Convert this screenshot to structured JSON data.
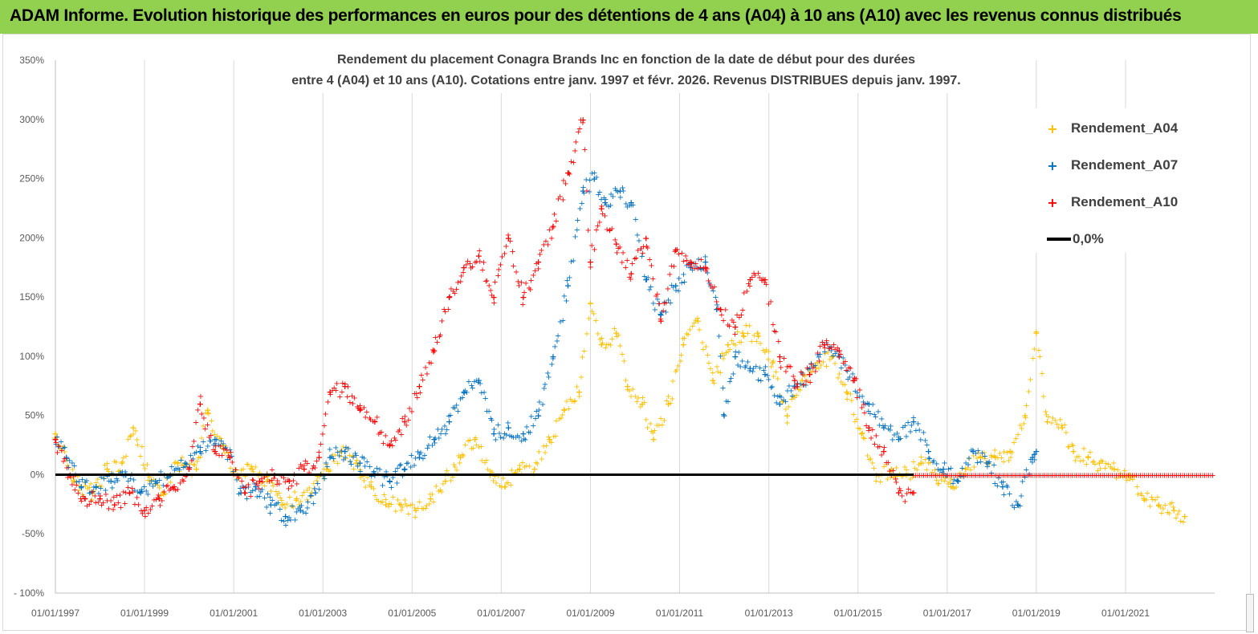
{
  "banner": {
    "text": "ADAM Informe. Evolution historique des performances en euros pour des détentions de 4 ans (A04) à 10 ans (A10) avec les revenus connus distribués",
    "color": "#92d050"
  },
  "chart_data": {
    "type": "scatter",
    "title_line1": "Rendement du placement Conagra Brands Inc en fonction de la date de début pour des durées",
    "title_line2": "entre 4 (A04) et 10 ans (A10).  Cotations entre janv. 1997 et févr. 2026. Revenus DISTRIBUES depuis janv. 1997.",
    "x_range": [
      "1997-01-01",
      "2023-01-01"
    ],
    "x_ticks": [
      "01/01/1997",
      "01/01/1999",
      "01/01/2001",
      "01/01/2003",
      "01/01/2005",
      "01/01/2007",
      "01/01/2009",
      "01/01/2011",
      "01/01/2013",
      "01/01/2015",
      "01/01/2017",
      "01/01/2019",
      "01/01/2021"
    ],
    "ylim": [
      -100,
      350
    ],
    "y_ticks": [
      -100,
      -50,
      0,
      50,
      100,
      150,
      200,
      250,
      300,
      350
    ],
    "y_tick_labels": [
      "- 100%",
      "-50%",
      "0%",
      "50%",
      "100%",
      "150%",
      "200%",
      "250%",
      "300%",
      "350%"
    ],
    "legend_position": "top-right",
    "grid": "vertical",
    "series": [
      {
        "name": "Rendement_A04",
        "color": "#ffc000",
        "marker": "+",
        "points": [
          [
            "1997-01-01",
            35
          ],
          [
            "1997-06-01",
            -5
          ],
          [
            "1997-11-01",
            -15
          ],
          [
            "1998-03-01",
            5
          ],
          [
            "1998-07-01",
            10
          ],
          [
            "1998-10-01",
            40
          ],
          [
            "1999-02-01",
            0
          ],
          [
            "1999-06-01",
            -15
          ],
          [
            "1999-10-01",
            10
          ],
          [
            "2000-03-01",
            5
          ],
          [
            "2000-06-01",
            55
          ],
          [
            "2000-10-01",
            25
          ],
          [
            "2001-02-01",
            0
          ],
          [
            "2001-06-01",
            5
          ],
          [
            "2001-10-01",
            -5
          ],
          [
            "2002-02-01",
            -25
          ],
          [
            "2002-06-01",
            -20
          ],
          [
            "2002-10-01",
            -15
          ],
          [
            "2003-02-01",
            5
          ],
          [
            "2003-06-01",
            20
          ],
          [
            "2003-10-01",
            10
          ],
          [
            "2004-02-01",
            -10
          ],
          [
            "2004-06-01",
            -25
          ],
          [
            "2004-10-01",
            -25
          ],
          [
            "2005-02-01",
            -30
          ],
          [
            "2005-06-01",
            -20
          ],
          [
            "2005-10-01",
            -5
          ],
          [
            "2006-02-01",
            15
          ],
          [
            "2006-06-01",
            30
          ],
          [
            "2006-10-01",
            0
          ],
          [
            "2007-02-01",
            -10
          ],
          [
            "2007-06-01",
            5
          ],
          [
            "2007-10-01",
            5
          ],
          [
            "2008-02-01",
            30
          ],
          [
            "2008-06-01",
            55
          ],
          [
            "2008-10-01",
            70
          ],
          [
            "2009-01-01",
            145
          ],
          [
            "2009-04-01",
            110
          ],
          [
            "2009-08-01",
            120
          ],
          [
            "2009-11-01",
            75
          ],
          [
            "2010-03-01",
            60
          ],
          [
            "2010-06-01",
            30
          ],
          [
            "2010-10-01",
            60
          ],
          [
            "2011-02-01",
            110
          ],
          [
            "2011-06-01",
            130
          ],
          [
            "2011-10-01",
            80
          ],
          [
            "2012-02-01",
            110
          ],
          [
            "2012-06-01",
            120
          ],
          [
            "2012-10-01",
            120
          ],
          [
            "2013-02-01",
            95
          ],
          [
            "2013-06-01",
            50
          ],
          [
            "2013-10-01",
            80
          ],
          [
            "2014-02-01",
            95
          ],
          [
            "2014-06-01",
            100
          ],
          [
            "2014-10-01",
            70
          ],
          [
            "2015-02-01",
            35
          ],
          [
            "2015-06-01",
            0
          ],
          [
            "2015-10-01",
            5
          ],
          [
            "2016-02-01",
            0
          ],
          [
            "2016-06-01",
            10
          ],
          [
            "2016-10-01",
            0
          ],
          [
            "2017-02-01",
            -10
          ],
          [
            "2017-06-01",
            5
          ],
          [
            "2017-10-01",
            15
          ],
          [
            "2018-02-01",
            15
          ],
          [
            "2018-06-01",
            20
          ],
          [
            "2018-10-01",
            50
          ],
          [
            "2019-01-01",
            120
          ],
          [
            "2019-04-01",
            45
          ],
          [
            "2019-08-01",
            40
          ],
          [
            "2019-11-01",
            20
          ],
          [
            "2020-03-01",
            15
          ],
          [
            "2020-06-01",
            10
          ],
          [
            "2020-10-01",
            5
          ],
          [
            "2021-02-01",
            0
          ],
          [
            "2021-06-01",
            -20
          ],
          [
            "2021-10-01",
            -25
          ],
          [
            "2022-02-01",
            -30
          ],
          [
            "2022-05-01",
            -35
          ]
        ]
      },
      {
        "name": "Rendement_A07",
        "color": "#0070c0",
        "marker": "+",
        "points": [
          [
            "1997-01-01",
            30
          ],
          [
            "1997-04-01",
            15
          ],
          [
            "1997-08-01",
            -10
          ],
          [
            "1997-12-01",
            -10
          ],
          [
            "1998-04-01",
            -5
          ],
          [
            "1998-08-01",
            0
          ],
          [
            "1998-12-01",
            -15
          ],
          [
            "1999-04-01",
            -5
          ],
          [
            "1999-08-01",
            0
          ],
          [
            "1999-12-01",
            10
          ],
          [
            "2000-04-01",
            20
          ],
          [
            "2000-08-01",
            30
          ],
          [
            "2000-12-01",
            15
          ],
          [
            "2001-03-01",
            -15
          ],
          [
            "2001-07-01",
            -10
          ],
          [
            "2001-11-01",
            -25
          ],
          [
            "2002-03-01",
            -35
          ],
          [
            "2002-07-01",
            -30
          ],
          [
            "2002-11-01",
            -15
          ],
          [
            "2003-03-01",
            15
          ],
          [
            "2003-07-01",
            20
          ],
          [
            "2003-11-01",
            10
          ],
          [
            "2004-03-01",
            0
          ],
          [
            "2004-07-01",
            -5
          ],
          [
            "2004-11-01",
            5
          ],
          [
            "2005-03-01",
            15
          ],
          [
            "2005-07-01",
            30
          ],
          [
            "2005-11-01",
            45
          ],
          [
            "2006-03-01",
            70
          ],
          [
            "2006-07-01",
            80
          ],
          [
            "2006-11-01",
            35
          ],
          [
            "2007-03-01",
            40
          ],
          [
            "2007-07-01",
            35
          ],
          [
            "2007-11-01",
            50
          ],
          [
            "2008-03-01",
            100
          ],
          [
            "2008-07-01",
            160
          ],
          [
            "2008-11-01",
            240
          ],
          [
            "2009-02-01",
            250
          ],
          [
            "2009-05-01",
            230
          ],
          [
            "2009-09-01",
            240
          ],
          [
            "2009-12-01",
            230
          ],
          [
            "2010-04-01",
            165
          ],
          [
            "2010-08-01",
            135
          ],
          [
            "2010-12-01",
            160
          ],
          [
            "2011-04-01",
            175
          ],
          [
            "2011-08-01",
            180
          ],
          [
            "2011-11-01",
            140
          ],
          [
            "2012-01-01",
            50
          ],
          [
            "2012-04-01",
            100
          ],
          [
            "2012-08-01",
            90
          ],
          [
            "2012-12-01",
            85
          ],
          [
            "2013-04-01",
            60
          ],
          [
            "2013-08-01",
            75
          ],
          [
            "2013-12-01",
            85
          ],
          [
            "2014-04-01",
            110
          ],
          [
            "2014-08-01",
            100
          ],
          [
            "2014-12-01",
            80
          ],
          [
            "2015-04-01",
            60
          ],
          [
            "2015-08-01",
            40
          ],
          [
            "2015-12-01",
            30
          ],
          [
            "2016-04-01",
            45
          ],
          [
            "2016-08-01",
            20
          ],
          [
            "2016-12-01",
            5
          ],
          [
            "2017-04-01",
            -5
          ],
          [
            "2017-08-01",
            20
          ],
          [
            "2017-12-01",
            10
          ],
          [
            "2018-04-01",
            -10
          ],
          [
            "2018-08-01",
            -25
          ],
          [
            "2018-12-01",
            15
          ],
          [
            "2019-01-01",
            20
          ]
        ]
      },
      {
        "name": "Rendement_A10",
        "color": "#ff0000",
        "marker": "+",
        "points": [
          [
            "1997-01-01",
            30
          ],
          [
            "1997-05-01",
            0
          ],
          [
            "1997-09-01",
            -20
          ],
          [
            "1998-01-01",
            -20
          ],
          [
            "1998-05-01",
            -25
          ],
          [
            "1998-09-01",
            -15
          ],
          [
            "1999-01-01",
            -30
          ],
          [
            "1999-05-01",
            -20
          ],
          [
            "1999-09-01",
            -10
          ],
          [
            "2000-01-01",
            5
          ],
          [
            "2000-04-01",
            60
          ],
          [
            "2000-08-01",
            20
          ],
          [
            "2000-12-01",
            15
          ],
          [
            "2001-04-01",
            -15
          ],
          [
            "2001-08-01",
            -5
          ],
          [
            "2001-12-01",
            0
          ],
          [
            "2002-04-01",
            -5
          ],
          [
            "2002-08-01",
            5
          ],
          [
            "2002-12-01",
            15
          ],
          [
            "2003-03-01",
            70
          ],
          [
            "2003-07-01",
            75
          ],
          [
            "2003-11-01",
            55
          ],
          [
            "2004-03-01",
            45
          ],
          [
            "2004-07-01",
            25
          ],
          [
            "2004-11-01",
            45
          ],
          [
            "2005-03-01",
            75
          ],
          [
            "2005-07-01",
            105
          ],
          [
            "2005-11-01",
            150
          ],
          [
            "2006-03-01",
            175
          ],
          [
            "2006-07-01",
            185
          ],
          [
            "2006-11-01",
            150
          ],
          [
            "2007-03-01",
            200
          ],
          [
            "2007-07-01",
            150
          ],
          [
            "2007-11-01",
            180
          ],
          [
            "2008-03-01",
            210
          ],
          [
            "2008-07-01",
            255
          ],
          [
            "2008-11-01",
            300
          ],
          [
            "2009-01-01",
            180
          ],
          [
            "2009-04-01",
            225
          ],
          [
            "2009-08-01",
            195
          ],
          [
            "2009-12-01",
            170
          ],
          [
            "2010-04-01",
            200
          ],
          [
            "2010-08-01",
            130
          ],
          [
            "2010-12-01",
            190
          ],
          [
            "2011-04-01",
            180
          ],
          [
            "2011-08-01",
            175
          ],
          [
            "2011-12-01",
            140
          ],
          [
            "2012-04-01",
            125
          ],
          [
            "2012-08-01",
            165
          ],
          [
            "2012-12-01",
            165
          ],
          [
            "2013-04-01",
            100
          ],
          [
            "2013-08-01",
            80
          ],
          [
            "2013-12-01",
            85
          ],
          [
            "2014-04-01",
            110
          ],
          [
            "2014-08-01",
            105
          ],
          [
            "2014-12-01",
            80
          ],
          [
            "2015-04-01",
            40
          ],
          [
            "2015-08-01",
            20
          ],
          [
            "2015-12-01",
            -15
          ],
          [
            "2016-04-01",
            -15
          ]
        ],
        "flat_segment": {
          "from": "2016-04-01",
          "to": "2023-01-01",
          "value": 0
        }
      },
      {
        "name": "0,0%",
        "color": "#000000",
        "marker": "line",
        "value": 0
      }
    ]
  }
}
